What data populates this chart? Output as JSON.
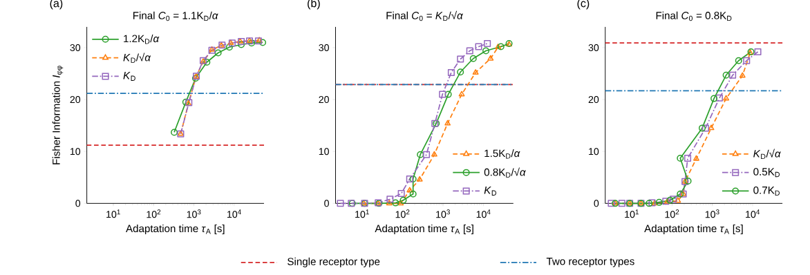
{
  "chart_data": [
    {
      "type": "line",
      "title": "Final *C*$_{0}$ = 1.1K$_{D}$/*α*",
      "annotations": [
        "(a)"
      ],
      "xlabel": "Adaptation time *τ*$_{A}$ [s]",
      "ylabel": "Fisher Information *I*$_{φφ}$",
      "log": "x",
      "legend": "top left",
      "xlim": [
        2.2,
        55000
      ],
      "ylim": [
        0,
        34
      ],
      "xticks": [
        {
          "value": 10,
          "label": "10$^{1}$"
        },
        {
          "value": 100,
          "label": "10$^{2}$"
        },
        {
          "value": 1000,
          "label": "10$^{3}$"
        },
        {
          "value": 10000,
          "label": "10$^{4}$"
        }
      ],
      "yticks": [
        0,
        10,
        20,
        30
      ],
      "ref_lines": [
        {
          "axis": "y",
          "value": 11.2,
          "color": "#d62728",
          "line_style": "dashed"
        },
        {
          "axis": "y",
          "value": 21.2,
          "color": "#1f77b4",
          "line_style": "dashdot"
        }
      ],
      "series": [
        {
          "name": "1.2K$_{D}$/*α*",
          "color": "#2ca02c",
          "marker": "circle",
          "line_style": "solid",
          "x": [
            325,
            630,
            1100,
            2100,
            4000,
            7600,
            15000,
            27000,
            51000
          ],
          "values": [
            13.7,
            19.5,
            24.1,
            27.2,
            29.0,
            30.1,
            30.6,
            30.9,
            31.0
          ]
        },
        {
          "name": "*K*$_{D}$/√*α*",
          "color": "#ff7f0e",
          "marker": "triangle",
          "line_style": "dashed",
          "x": [
            470,
            730,
            1130,
            1700,
            2800,
            4800,
            8200,
            14000,
            24000,
            42000
          ],
          "values": [
            13.4,
            19.2,
            24.4,
            27.3,
            29.6,
            30.4,
            30.9,
            31.2,
            31.3,
            31.4
          ]
        },
        {
          "name": "*K*$_{D}$",
          "color": "#9467bd",
          "marker": "square",
          "line_style": "dashdot",
          "x": [
            470,
            750,
            1150,
            1700,
            2800,
            5000,
            8900,
            15000,
            24000,
            40000
          ],
          "values": [
            13.4,
            19.4,
            24.5,
            27.5,
            29.5,
            30.5,
            30.9,
            31.2,
            31.3,
            31.3
          ]
        }
      ]
    },
    {
      "type": "line",
      "title": "Final *C*$_{0}$ = *K*$_{D}$/√*α*",
      "annotations": [
        "(b)"
      ],
      "xlabel": "Adaptation time *τ*$_{A}$ [s]",
      "log": "x",
      "legend": "bottom right",
      "xlim": [
        2.2,
        55000
      ],
      "ylim": [
        0,
        34
      ],
      "xticks": [
        {
          "value": 10,
          "label": "10$^{1}$"
        },
        {
          "value": 100,
          "label": "10$^{2}$"
        },
        {
          "value": 1000,
          "label": "10$^{3}$"
        },
        {
          "value": 10000,
          "label": "10$^{4}$"
        }
      ],
      "yticks": [
        0,
        10,
        20,
        30
      ],
      "ref_lines": [
        {
          "axis": "y",
          "value": 22.9,
          "label": "Single receptor type",
          "color": "#d62728",
          "line_style": "dashed"
        },
        {
          "axis": "y",
          "value": 22.9,
          "label": "Two receptor types",
          "color": "#1f77b4",
          "line_style": "dashdot"
        }
      ],
      "series": [
        {
          "name": "1.5K$_{D}$/*α*",
          "color": "#ff7f0e",
          "marker": "triangle",
          "line_style": "dashed",
          "x": [
            11,
            25,
            47,
            90,
            150,
            265,
            610,
            1300,
            2900,
            6400,
            15000,
            23000,
            43000
          ],
          "values": [
            0,
            0,
            0,
            0,
            2.5,
            4.6,
            9.4,
            15.4,
            21.0,
            25.2,
            27.9,
            30.1,
            30.6
          ]
        },
        {
          "name": "0.8K$_{D}$/√*α*",
          "color": "#2ca02c",
          "marker": "circle",
          "line_style": "solid",
          "x": [
            5.7,
            11.5,
            26,
            67,
            104,
            182,
            182,
            275,
            680,
            1350,
            2700,
            5600,
            11500,
            27000,
            43000
          ],
          "values": [
            0,
            0,
            0,
            0.1,
            0.6,
            1.8,
            4.7,
            9.4,
            15.4,
            21.0,
            25.3,
            27.9,
            29.4,
            30.2,
            30.8
          ]
        },
        {
          "name": "*K*$_{D}$",
          "color": "#9467bd",
          "marker": "square",
          "line_style": "dashdot",
          "x": [
            2.9,
            5.4,
            11.5,
            25,
            49,
            93,
            150,
            390,
            630,
            970,
            1600,
            2700,
            4600,
            7600,
            12500
          ],
          "values": [
            0,
            0,
            0,
            0.1,
            0.8,
            1.9,
            4.7,
            9.4,
            15.4,
            21.0,
            25.2,
            27.8,
            29.4,
            30.2,
            30.8
          ]
        }
      ]
    },
    {
      "type": "line",
      "title": "Final *C*$_{0}$ = 0.8K$_{D}$",
      "annotations": [
        "(c)"
      ],
      "xlabel": "Adaptation time *τ*$_{A}$ [s]",
      "log": "x",
      "legend": "bottom right",
      "xlim": [
        2.2,
        55000
      ],
      "ylim": [
        0,
        34
      ],
      "xticks": [
        {
          "value": 10,
          "label": "10$^{1}$"
        },
        {
          "value": 100,
          "label": "10$^{2}$"
        },
        {
          "value": 1000,
          "label": "10$^{3}$"
        },
        {
          "value": 10000,
          "label": "10$^{4}$"
        }
      ],
      "yticks": [
        0,
        10,
        20,
        30
      ],
      "ref_lines": [
        {
          "axis": "y",
          "value": 30.9,
          "color": "#d62728",
          "line_style": "dashed"
        },
        {
          "axis": "y",
          "value": 21.7,
          "color": "#1f77b4",
          "line_style": "dashdot"
        }
      ],
      "series": [
        {
          "name": "*K*$_{D}$/√*α*",
          "color": "#ff7f0e",
          "marker": "triangle",
          "line_style": "dashed",
          "x": [
            3.9,
            8.9,
            17,
            37,
            76,
            140,
            190,
            210,
            400,
            940,
            2200,
            5600,
            8700
          ],
          "values": [
            0,
            0,
            0,
            0,
            0.3,
            0.5,
            1.8,
            4.2,
            8.6,
            14.5,
            20.2,
            24.6,
            29.0
          ]
        },
        {
          "name": "0.5K$_{D}$",
          "color": "#9467bd",
          "marker": "square",
          "line_style": "dashdot",
          "x": [
            3.1,
            5.7,
            8.9,
            17,
            32,
            70,
            107,
            190,
            210,
            245,
            680,
            1500,
            3200,
            7100,
            13500
          ],
          "values": [
            0,
            0,
            0,
            0,
            0.1,
            0.4,
            0.8,
            1.8,
            4.2,
            8.7,
            14.5,
            20.3,
            24.7,
            27.5,
            29.2
          ]
        },
        {
          "name": "0.7K$_{D}$",
          "color": "#2ca02c",
          "marker": "circle",
          "line_style": "solid",
          "x": [
            3.9,
            8.9,
            17,
            27,
            48,
            89,
            160,
            250,
            160,
            560,
            1100,
            2200,
            4500,
            9100
          ],
          "values": [
            0,
            0,
            0,
            0,
            0.2,
            0.6,
            1.8,
            4.3,
            8.7,
            14.5,
            20.2,
            24.7,
            27.5,
            29.2
          ]
        }
      ]
    }
  ]
}
